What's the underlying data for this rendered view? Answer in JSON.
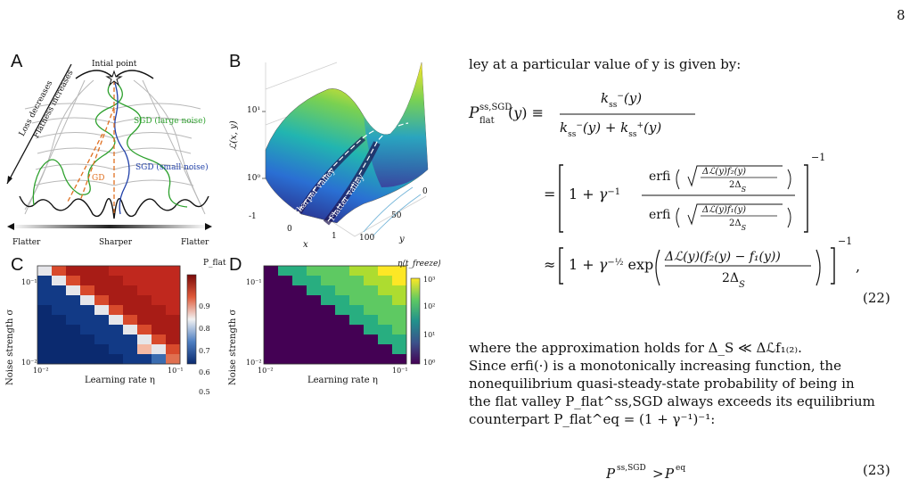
{
  "page_number": "8",
  "figure": {
    "panel_a": {
      "letter": "A",
      "initial_point": "Intial point",
      "loss_decreases": "Loss decreases",
      "flatness_increases": "Flatness increases",
      "sgd_large": "SGD (large noise)",
      "sgd_small": "SGD (small noise)",
      "gd": "GD",
      "bottom_labels": [
        "Flatter",
        "Sharper",
        "Flatter"
      ],
      "colors": {
        "large_noise": "#2ca02c",
        "small_noise": "#1f3fa8",
        "gd": "#e07020"
      }
    },
    "panel_b": {
      "letter": "B",
      "z_label": "ℒ(x, y)",
      "x_label": "x",
      "y_label": "y",
      "z_ticks": [
        "10¹",
        "10⁰"
      ],
      "x_ticks": [
        "-1",
        "0",
        "1"
      ],
      "y_ticks": [
        "0",
        "50",
        "100"
      ],
      "sharper_valley": "Sharper valley",
      "flatter_valley": "Flatter valley"
    },
    "panel_c": {
      "letter": "C",
      "colorbar_title": "P_flat",
      "colorbar_ticks": [
        "0.9",
        "0.8",
        "0.7",
        "0.6",
        "0.5"
      ],
      "ylabel": "Noise strength σ",
      "xlabel": "Learning rate η",
      "x_ticks": [
        "10⁻²",
        "10⁻¹"
      ],
      "y_ticks": [
        "10⁻¹",
        "10⁻²"
      ]
    },
    "panel_d": {
      "letter": "D",
      "colorbar_title": "η⟨t_freeze⟩",
      "colorbar_ticks": [
        "10³",
        "10²",
        "10¹",
        "10⁰"
      ],
      "ylabel": "Noise strength σ",
      "xlabel": "Learning rate η",
      "x_ticks": [
        "10⁻²",
        "10⁻¹"
      ],
      "y_ticks": [
        "10⁻¹",
        "10⁻²"
      ]
    }
  },
  "text": {
    "intro_line": "ley at a particular value of y is given by:",
    "eq_number_22": "(22)",
    "para_1": "where the approximation holds for Δ_S ≪ Δℒf₁₍₂₎.",
    "para_2": "Since erfi(·) is a monotonically increasing function, the",
    "para_3": "nonequilibrium quasi-steady-state probability of being in",
    "para_4": "the flat valley P_flat^ss,SGD always exceeds its equilibrium",
    "para_5": "counterpart P_flat^eq = (1 + γ⁻¹)⁻¹:",
    "eq_number_23": "(23)"
  }
}
